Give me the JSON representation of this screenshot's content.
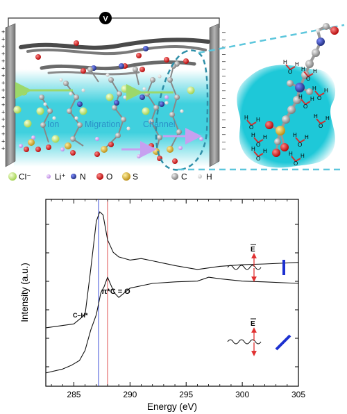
{
  "schematic": {
    "voltmeter": "V",
    "channel_words": [
      "Ion",
      "Migration",
      "Channel"
    ],
    "legend": [
      {
        "label": "Cl⁻",
        "color": "#c4e87a",
        "icon": "chloride-atom"
      },
      {
        "label": "Li⁺",
        "color": "#d8a8f0",
        "icon": "lithium-atom"
      },
      {
        "label": "N",
        "color": "#2a3c9e",
        "icon": "nitrogen-atom"
      },
      {
        "label": "O",
        "color": "#e01a1a",
        "icon": "oxygen-atom"
      },
      {
        "label": "S",
        "color": "#e2b52a",
        "icon": "sulfur-atom"
      },
      {
        "label": "C",
        "color": "#9a9a9a",
        "icon": "carbon-atom"
      },
      {
        "label": "H",
        "color": "#eeeeee",
        "icon": "hydrogen-atom"
      }
    ],
    "colors": {
      "channel": "#1ec8d8",
      "electrode": "#8c8c8c",
      "dashed": "#2e8fa8"
    }
  },
  "chart_data": {
    "type": "line",
    "xlabel": "Energy (eV)",
    "ylabel": "Intensity (a.u.)",
    "xlim": [
      282.5,
      305
    ],
    "x_ticks": [
      285,
      290,
      295,
      300,
      305
    ],
    "x_tick_labels": [
      "285",
      "290",
      "295",
      "300",
      "305"
    ],
    "vlines": [
      {
        "x": 287.2,
        "color": "#3b4fd8"
      },
      {
        "x": 288.0,
        "color": "#e05050"
      }
    ],
    "annotations": [
      "π*C = O",
      "C–H*"
    ],
    "polarization_symbol": "E",
    "series": [
      {
        "x": [
          282.5,
          284.0,
          285.0,
          286.0,
          286.5,
          287.0,
          287.3,
          287.6,
          288.0,
          288.5,
          289.0,
          290.0,
          291.0,
          292.0,
          293.0,
          294.0,
          296.0,
          298.0,
          300.0,
          302.0,
          305.0
        ],
        "y": [
          0.175,
          0.19,
          0.2,
          0.26,
          0.55,
          0.86,
          0.92,
          0.9,
          0.74,
          0.66,
          0.63,
          0.61,
          0.62,
          0.605,
          0.59,
          0.575,
          0.55,
          0.57,
          0.58,
          0.585,
          0.595
        ]
      },
      {
        "x": [
          282.5,
          284.0,
          284.8,
          285.5,
          286.0,
          286.5,
          287.0,
          287.4,
          287.7,
          288.0,
          288.3,
          288.6,
          289.0,
          290.0,
          292.0,
          294.0,
          296.0,
          297.0,
          298.0,
          300.0,
          302.0,
          305.0
        ],
        "y": [
          -0.115,
          -0.09,
          -0.065,
          -0.035,
          0.03,
          0.16,
          0.26,
          0.4,
          0.44,
          0.5,
          0.45,
          0.4,
          0.37,
          0.43,
          0.46,
          0.47,
          0.475,
          0.5,
          0.49,
          0.475,
          0.47,
          0.46
        ]
      }
    ]
  }
}
